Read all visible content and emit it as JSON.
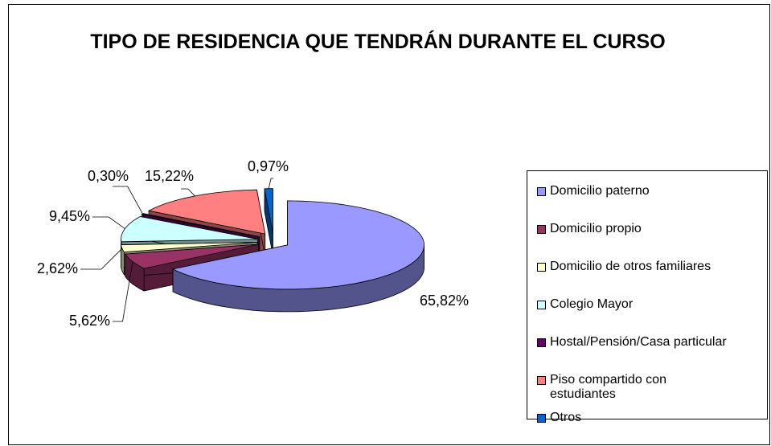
{
  "chart_data": {
    "type": "pie",
    "title": "TIPO DE RESIDENCIA QUE TENDRÁN DURANTE EL CURSO",
    "categories": [
      "Domicilio paterno",
      "Domicilio propio",
      "Domicilio de otros familiares",
      "Colegio Mayor",
      "Hostal/Pensión/Casa particular",
      "Piso compartido con estudiantes",
      "Otros"
    ],
    "values": [
      65.82,
      5.62,
      2.62,
      9.45,
      0.3,
      15.22,
      0.97
    ],
    "value_labels": [
      "65,82%",
      "5,62%",
      "2,62%",
      "9,45%",
      "0,30%",
      "15,22%",
      "0,97%"
    ],
    "colors": [
      "#9999ff",
      "#993366",
      "#ffffcc",
      "#ccffff",
      "#660066",
      "#ff8080",
      "#0066cc"
    ],
    "legend": "right"
  }
}
